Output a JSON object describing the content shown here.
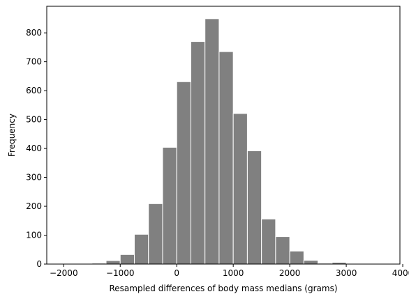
{
  "chart_data": {
    "type": "bar",
    "xlabel": "Resampled differences of body mass medians (grams)",
    "ylabel": "Frequency",
    "xlim": [
      -2300,
      3950
    ],
    "ylim": [
      0,
      892
    ],
    "xticks": [
      -2000,
      -1000,
      0,
      1000,
      2000,
      3000,
      4000
    ],
    "xtick_labels": [
      "−2000",
      "−1000",
      "0",
      "1000",
      "2000",
      "3000",
      "4000"
    ],
    "yticks": [
      0,
      100,
      200,
      300,
      400,
      500,
      600,
      700,
      800
    ],
    "ytick_labels": [
      "0",
      "100",
      "200",
      "300",
      "400",
      "500",
      "600",
      "700",
      "800"
    ],
    "grid": false,
    "bar_color": "#808080",
    "edge_color": "#ffffff",
    "bins": [
      {
        "x0": -1750,
        "x1": -1500,
        "value": 1
      },
      {
        "x0": -1500,
        "x1": -1250,
        "value": 3
      },
      {
        "x0": -1250,
        "x1": -1000,
        "value": 12
      },
      {
        "x0": -1000,
        "x1": -750,
        "value": 33
      },
      {
        "x0": -750,
        "x1": -500,
        "value": 103
      },
      {
        "x0": -500,
        "x1": -250,
        "value": 209
      },
      {
        "x0": -250,
        "x1": 0,
        "value": 404
      },
      {
        "x0": 0,
        "x1": 250,
        "value": 631
      },
      {
        "x0": 250,
        "x1": 500,
        "value": 770
      },
      {
        "x0": 500,
        "x1": 750,
        "value": 849
      },
      {
        "x0": 750,
        "x1": 1000,
        "value": 735
      },
      {
        "x0": 1000,
        "x1": 1250,
        "value": 521
      },
      {
        "x0": 1250,
        "x1": 1500,
        "value": 392
      },
      {
        "x0": 1500,
        "x1": 1750,
        "value": 156
      },
      {
        "x0": 1750,
        "x1": 2000,
        "value": 95
      },
      {
        "x0": 2000,
        "x1": 2250,
        "value": 45
      },
      {
        "x0": 2250,
        "x1": 2500,
        "value": 13
      },
      {
        "x0": 2500,
        "x1": 2750,
        "value": 3
      },
      {
        "x0": 2750,
        "x1": 3000,
        "value": 6
      },
      {
        "x0": 3000,
        "x1": 3250,
        "value": 2
      },
      {
        "x0": 3250,
        "x1": 3500,
        "value": 1
      }
    ]
  }
}
